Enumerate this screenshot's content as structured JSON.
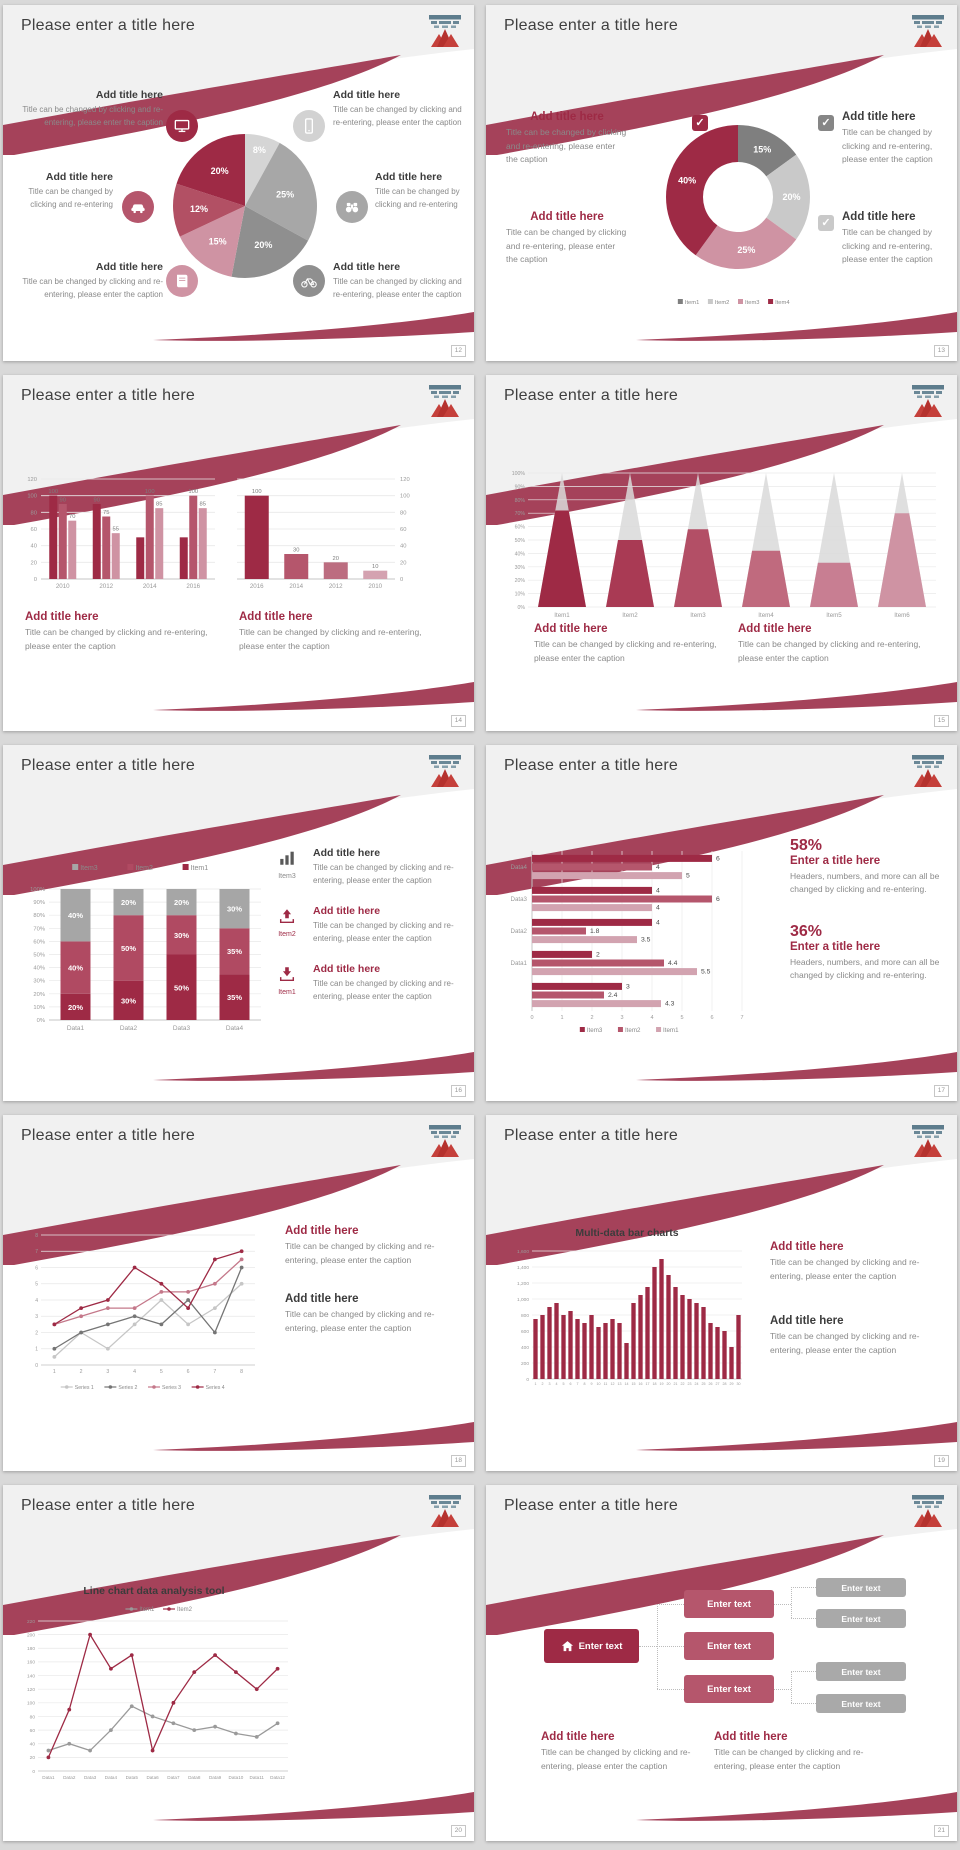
{
  "common": {
    "slide_title": "Please enter a title here",
    "add_title": "Add title here",
    "caption": "Title can be changed by clicking and re-entering, please enter the caption",
    "caption_short": "Title can be changed by clicking and re-entering"
  },
  "colors": {
    "accent_dark": "#9e2a45",
    "accent_mid": "#b5566c",
    "accent_light": "#cf93a3",
    "swoosh": "#a5425a",
    "gray_dark": "#8f8f8f",
    "gray_light": "#d2d2d2",
    "heading_dark": "#3c3c3c",
    "caption_gray": "#8a8a8a"
  },
  "slides": {
    "s12": {
      "page": "12",
      "icons": [
        "monitor-icon",
        "car-icon",
        "book-icon",
        "smartphone-icon",
        "binoculars-icon",
        "bicycle-icon"
      ]
    },
    "s13": {
      "page": "13"
    },
    "s14": {
      "page": "14"
    },
    "s15": {
      "page": "15"
    },
    "s16": {
      "page": "16",
      "rows": [
        {
          "item": "Item3",
          "icon": "bar-chart-icon"
        },
        {
          "item": "Item2",
          "icon": "upload-icon"
        },
        {
          "item": "Item1",
          "icon": "download-icon"
        }
      ]
    },
    "s17": {
      "page": "17",
      "stats": [
        {
          "pct": "58%",
          "title": "Enter a title here",
          "caption": "Headers, numbers, and more can all be changed by clicking and re-entering."
        },
        {
          "pct": "36%",
          "title": "Enter a title here",
          "caption": "Headers, numbers, and more can all be changed by clicking and re-entering."
        }
      ]
    },
    "s18": {
      "page": "18"
    },
    "s19": {
      "page": "19"
    },
    "s20": {
      "page": "20"
    },
    "s21": {
      "page": "21",
      "node_label": "Enter text"
    }
  },
  "chart_data": [
    {
      "type": "pie",
      "slide": 12,
      "values": [
        8,
        25,
        20,
        15,
        12,
        20
      ],
      "labels": [
        "8%",
        "25%",
        "20%",
        "15%",
        "12%",
        "20%"
      ],
      "colors": [
        "#d5d5d5",
        "#a7a7a7",
        "#8f8f8f",
        "#cf93a3",
        "#b25064",
        "#9e2a45"
      ],
      "start_angle": -90,
      "label_r": [
        0.8,
        0.58,
        0.6,
        0.62,
        0.64,
        0.6
      ]
    },
    {
      "type": "pie",
      "slide": 13,
      "donut": true,
      "values": [
        15,
        20,
        25,
        40
      ],
      "labels": [
        "15%",
        "20%",
        "25%",
        "40%"
      ],
      "colors": [
        "#7f7f7f",
        "#c9c9c9",
        "#cf93a3",
        "#9e2a45"
      ],
      "start_angle": -90,
      "legend": [
        "Item1",
        "Item2",
        "Item3",
        "Item4"
      ]
    },
    {
      "type": "bar",
      "slide": 14,
      "categories": [
        "2010",
        "2012",
        "2014",
        "2016"
      ],
      "series_values": [
        [
          100,
          90,
          70
        ],
        [
          90,
          75,
          55
        ],
        [
          50,
          100,
          85
        ],
        [
          50,
          100,
          85
        ]
      ],
      "bar_labels": [
        [
          "100",
          "90",
          "70"
        ],
        [
          "90",
          "75",
          "55"
        ],
        [
          "",
          "100",
          "85"
        ],
        [
          "",
          "100",
          "85"
        ]
      ],
      "colors": [
        "#9e2a45",
        "#b5566c",
        "#cf93a3"
      ],
      "ymax": 120,
      "yticks": [
        0,
        20,
        40,
        60,
        80,
        100,
        120
      ],
      "axis": "left"
    },
    {
      "type": "bar",
      "slide": 14,
      "categories": [
        "2016",
        "2014",
        "2012",
        "2010"
      ],
      "values": [
        100,
        30,
        20,
        10
      ],
      "bar_labels": [
        "100",
        "30",
        "20",
        "10"
      ],
      "colors": [
        "#9e2a45",
        "#b5566c",
        "#bc6d80",
        "#d4a2b0"
      ],
      "ymax": 120,
      "yticks": [
        0,
        20,
        40,
        60,
        80,
        100,
        120
      ],
      "axis": "right"
    },
    {
      "type": "cone",
      "slide": 15,
      "categories": [
        "Item1",
        "Item2",
        "Item3",
        "Item4",
        "Item5",
        "Item6"
      ],
      "values": [
        72,
        50,
        58,
        42,
        33,
        70
      ],
      "colors": [
        "#9e2a45",
        "#a93a54",
        "#b34f66",
        "#c06a7e",
        "#c87e92",
        "#cf93a3"
      ],
      "ymax": 100
    },
    {
      "type": "stacked",
      "slide": 16,
      "categories": [
        "Data1",
        "Data2",
        "Data3",
        "Data4"
      ],
      "series": [
        {
          "name": "Item1",
          "color": "#9e2a45",
          "values": [
            20,
            30,
            50,
            35
          ]
        },
        {
          "name": "Item2",
          "color": "#b04a62",
          "values": [
            40,
            50,
            30,
            35
          ]
        },
        {
          "name": "Item3",
          "color": "#a6a6a6",
          "values": [
            40,
            20,
            20,
            30
          ]
        }
      ],
      "legend_order": [
        "Item3",
        "Item2",
        "Item1"
      ],
      "ymax": 100
    },
    {
      "type": "hbar",
      "slide": 17,
      "group_labels": [
        "Data4",
        "Data3",
        "Data2",
        "Data1",
        ""
      ],
      "groups": [
        [
          6,
          4,
          5
        ],
        [
          4,
          6,
          4
        ],
        [
          4,
          1.8,
          3.5
        ],
        [
          2,
          4.4,
          5.5
        ],
        [
          3,
          2.4,
          4.3
        ]
      ],
      "colors": [
        "#9e2a45",
        "#b5566c",
        "#d2a3b0"
      ],
      "xmax": 7,
      "xticks": [
        0,
        1,
        2,
        3,
        4,
        5,
        6,
        7
      ],
      "legend": [
        "Item3",
        "Item2",
        "Item1"
      ]
    },
    {
      "type": "line",
      "slide": 18,
      "x": [
        "1",
        "2",
        "3",
        "4",
        "5",
        "6",
        "7",
        "8"
      ],
      "series": [
        {
          "name": "Series 1",
          "color": "#c6c6c6",
          "values": [
            0.5,
            2,
            1,
            2.5,
            4,
            2.5,
            3.5,
            5
          ]
        },
        {
          "name": "Series 2",
          "color": "#757575",
          "values": [
            1,
            2,
            2.5,
            3,
            2.5,
            4,
            2,
            6
          ]
        },
        {
          "name": "Series 3",
          "color": "#c4788a",
          "values": [
            2.5,
            3,
            3.5,
            3.5,
            4.5,
            4.5,
            5,
            6.5
          ]
        },
        {
          "name": "Series 4",
          "color": "#9e2a45",
          "values": [
            2.5,
            3.5,
            4,
            6,
            5,
            3.5,
            6.5,
            7
          ]
        }
      ],
      "ymax": 8,
      "ytick_step": 1
    },
    {
      "type": "bar",
      "painter": "bigbar",
      "slide": 19,
      "title": "Multi-data bar charts",
      "values": [
        750,
        800,
        900,
        950,
        800,
        850,
        750,
        700,
        800,
        650,
        700,
        750,
        700,
        450,
        950,
        1050,
        1150,
        1400,
        1500,
        1300,
        1150,
        1050,
        1000,
        950,
        900,
        700,
        650,
        600,
        400,
        800
      ],
      "color": "#9e2a45",
      "ymax": 1600,
      "ylabels": [
        "0",
        "200",
        "400",
        "600",
        "800",
        "1,000",
        "1,200",
        "1,400",
        "1,600"
      ]
    },
    {
      "type": "line",
      "slide": 20,
      "title": "Line chart data analysis tool",
      "x": [
        "Data1",
        "Data2",
        "Data3",
        "Data4",
        "Data5",
        "Data6",
        "Data7",
        "Data8",
        "Data9",
        "Data10",
        "Data11",
        "Data12"
      ],
      "series": [
        {
          "name": "Item1",
          "color": "#9a9a9a",
          "values": [
            30,
            40,
            30,
            60,
            95,
            80,
            70,
            60,
            65,
            55,
            50,
            70
          ]
        },
        {
          "name": "Item2",
          "color": "#9e2a45",
          "values": [
            20,
            90,
            200,
            150,
            170,
            30,
            100,
            145,
            170,
            145,
            120,
            150
          ]
        }
      ],
      "ymax": 220,
      "ytick_step": 20
    }
  ]
}
